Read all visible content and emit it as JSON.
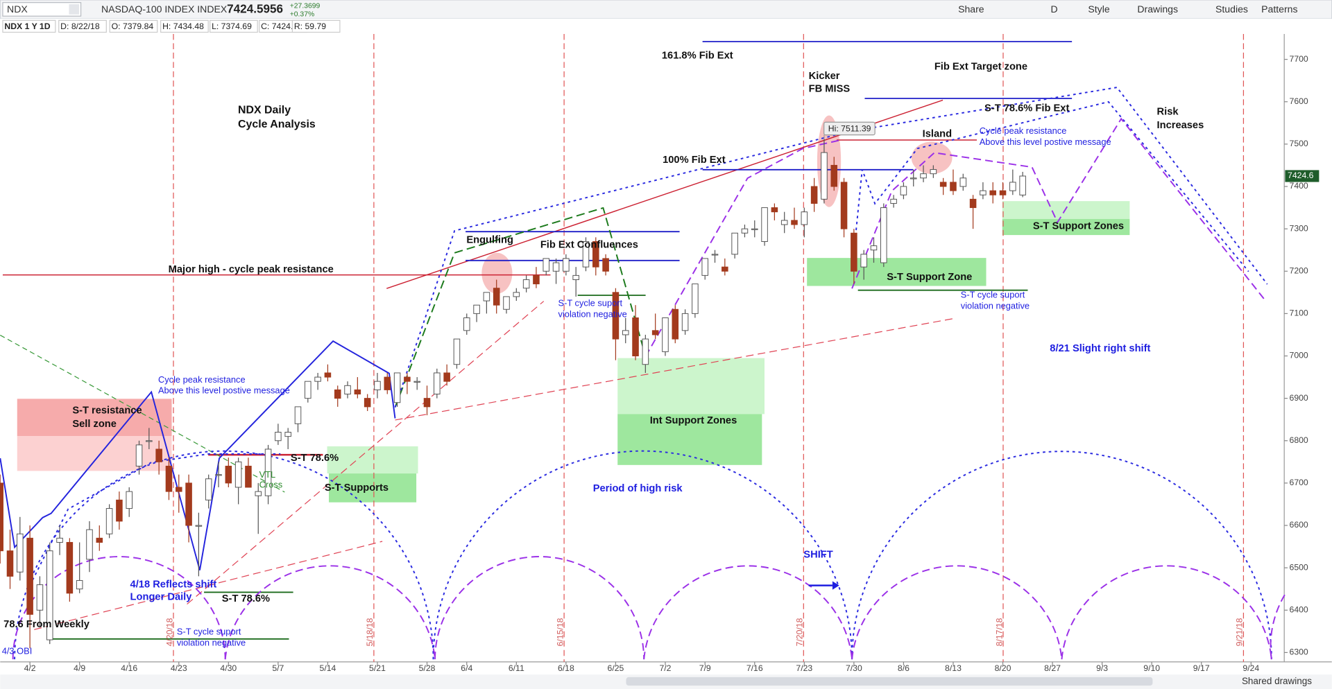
{
  "toolbar": {
    "symbol": "NDX",
    "name": "NASDAQ-100 INDEX INDEX",
    "price": "7424.5956",
    "change": "+27.3699",
    "change_pct": "+0.37%",
    "buttons": [
      "Share",
      "D",
      "Style",
      "Drawings",
      "Studies",
      "Patterns"
    ],
    "info": [
      "NDX 1 Y 1D",
      "D: 8/22/18",
      "O: 7379.84",
      "H: 7434.48",
      "L: 7374.69",
      "C: 7424.6",
      "R: 59.79"
    ],
    "footer": "Shared drawings"
  },
  "chart_data": {
    "type": "candlestick",
    "categories": [
      "3/27",
      "3/28",
      "3/29",
      "4/2",
      "4/3",
      "4/4",
      "4/5",
      "4/6",
      "4/9",
      "4/10",
      "4/11",
      "4/12",
      "4/13",
      "4/16",
      "4/17",
      "4/18",
      "4/19",
      "4/20",
      "4/23",
      "4/24",
      "4/25",
      "4/26",
      "4/27",
      "4/30",
      "5/1",
      "5/2",
      "5/3",
      "5/4",
      "5/7",
      "5/8",
      "5/9",
      "5/10",
      "5/11",
      "5/14",
      "5/15",
      "5/16",
      "5/17",
      "5/18",
      "5/21",
      "5/22",
      "5/23",
      "5/24",
      "5/25",
      "5/29",
      "5/30",
      "5/31",
      "6/1",
      "6/4",
      "6/5",
      "6/6",
      "6/7",
      "6/8",
      "6/11",
      "6/12",
      "6/13",
      "6/14",
      "6/15",
      "6/18",
      "6/19",
      "6/20",
      "6/21",
      "6/22",
      "6/25",
      "6/26",
      "6/27",
      "6/28",
      "6/29",
      "7/2",
      "7/3",
      "7/5",
      "7/6",
      "7/9",
      "7/10",
      "7/11",
      "7/12",
      "7/13",
      "7/16",
      "7/17",
      "7/18",
      "7/19",
      "7/20",
      "7/23",
      "7/24",
      "7/25",
      "7/26",
      "7/27",
      "7/30",
      "7/31",
      "8/1",
      "8/2",
      "8/3",
      "8/6",
      "8/7",
      "8/8",
      "8/9",
      "8/10",
      "8/13",
      "8/14",
      "8/15",
      "8/16",
      "8/17",
      "8/20",
      "8/21",
      "8/22"
    ],
    "open": [
      6700,
      6540,
      6490,
      6570,
      6400,
      6330,
      6560,
      6560,
      6450,
      6520,
      6570,
      6580,
      6660,
      6640,
      6740,
      6800,
      6780,
      6740,
      6690,
      6700,
      6600,
      6660,
      6720,
      6740,
      6690,
      6740,
      6670,
      6670,
      6800,
      6810,
      6840,
      6900,
      6940,
      6960,
      6920,
      6910,
      6920,
      6900,
      6920,
      6950,
      6890,
      6950,
      6940,
      6900,
      6910,
      6960,
      6980,
      7060,
      7100,
      7130,
      7160,
      7110,
      7140,
      7160,
      7190,
      7200,
      7200,
      7200,
      7180,
      7210,
      7270,
      7230,
      7150,
      7050,
      7090,
      6980,
      7060,
      7010,
      7110,
      7060,
      7100,
      7190,
      7240,
      7210,
      7240,
      7290,
      7300,
      7270,
      7350,
      7310,
      7320,
      7310,
      7400,
      7370,
      7450,
      7410,
      7290,
      7210,
      7250,
      7220,
      7360,
      7380,
      7420,
      7420,
      7430,
      7410,
      7410,
      7400,
      7370,
      7380,
      7390,
      7390,
      7390,
      7379.84
    ],
    "high": [
      6720,
      6590,
      6620,
      6600,
      6480,
      6560,
      6600,
      6570,
      6560,
      6610,
      6600,
      6650,
      6680,
      6690,
      6800,
      6830,
      6800,
      6760,
      6720,
      6720,
      6630,
      6720,
      6750,
      6760,
      6760,
      6760,
      6700,
      6790,
      6840,
      6830,
      6880,
      6940,
      6960,
      6980,
      6930,
      6940,
      6950,
      6910,
      6960,
      6960,
      6960,
      6960,
      6950,
      6930,
      6970,
      6980,
      7040,
      7100,
      7120,
      7150,
      7180,
      7140,
      7160,
      7190,
      7210,
      7230,
      7230,
      7240,
      7210,
      7280,
      7280,
      7240,
      7160,
      7090,
      7120,
      7050,
      7100,
      7090,
      7120,
      7110,
      7170,
      7230,
      7250,
      7230,
      7290,
      7310,
      7320,
      7350,
      7360,
      7340,
      7350,
      7350,
      7420,
      7511.39,
      7470,
      7420,
      7300,
      7250,
      7280,
      7360,
      7380,
      7410,
      7440,
      7450,
      7450,
      7420,
      7440,
      7430,
      7380,
      7410,
      7410,
      7410,
      7440,
      7434.48
    ],
    "low": [
      6510,
      6450,
      6470,
      6310,
      6360,
      6320,
      6530,
      6420,
      6440,
      6490,
      6540,
      6570,
      6590,
      6620,
      6720,
      6780,
      6720,
      6660,
      6630,
      6560,
      6480,
      6640,
      6690,
      6690,
      6650,
      6690,
      6580,
      6650,
      6790,
      6780,
      6820,
      6890,
      6920,
      6940,
      6880,
      6900,
      6900,
      6870,
      6900,
      6910,
      6880,
      6910,
      6920,
      6860,
      6900,
      6930,
      6970,
      7050,
      7080,
      7100,
      7100,
      7100,
      7130,
      7150,
      7160,
      7190,
      7170,
      7190,
      7140,
      7200,
      7190,
      7190,
      6990,
      7030,
      6990,
      6960,
      7040,
      7000,
      7030,
      7050,
      7090,
      7180,
      7220,
      7190,
      7230,
      7280,
      7280,
      7260,
      7320,
      7290,
      7300,
      7280,
      7340,
      7360,
      7390,
      7280,
      7170,
      7180,
      7220,
      7210,
      7350,
      7370,
      7400,
      7410,
      7420,
      7380,
      7380,
      7390,
      7300,
      7370,
      7360,
      7370,
      7380,
      7374.69
    ],
    "close": [
      6540,
      6480,
      6580,
      6390,
      6460,
      6540,
      6570,
      6440,
      6470,
      6590,
      6560,
      6640,
      6610,
      6680,
      6790,
      6800,
      6750,
      6680,
      6680,
      6600,
      6600,
      6710,
      6720,
      6700,
      6750,
      6690,
      6680,
      6780,
      6820,
      6820,
      6880,
      6940,
      6950,
      6950,
      6900,
      6930,
      6910,
      6880,
      6940,
      6920,
      6960,
      6940,
      6940,
      6880,
      6960,
      6940,
      7040,
      7090,
      7120,
      7150,
      7120,
      7140,
      7150,
      7180,
      7170,
      7230,
      7220,
      7230,
      7190,
      7270,
      7210,
      7200,
      7040,
      7060,
      7000,
      7040,
      7050,
      7090,
      7040,
      7100,
      7170,
      7230,
      7240,
      7200,
      7290,
      7300,
      7300,
      7350,
      7340,
      7320,
      7310,
      7340,
      7360,
      7480,
      7400,
      7300,
      7200,
      7240,
      7260,
      7350,
      7370,
      7400,
      7420,
      7430,
      7440,
      7400,
      7390,
      7420,
      7350,
      7390,
      7380,
      7380,
      7410,
      7424.6
    ],
    "up_color": "#ffffff",
    "down_color": "#a33a1d",
    "outline_color": "#555555",
    "xticks": [
      "4/2",
      "4/9",
      "4/16",
      "4/23",
      "4/30",
      "5/7",
      "5/14",
      "5/21",
      "5/28",
      "6/4",
      "6/11",
      "6/18",
      "6/25",
      "7/2",
      "7/9",
      "7/16",
      "7/23",
      "7/30",
      "8/6",
      "8/13",
      "8/20",
      "8/27",
      "9/3",
      "9/10",
      "9/17",
      "9/24"
    ],
    "ylim": [
      6278,
      7760
    ],
    "yticks": [
      6300,
      6400,
      6500,
      6600,
      6700,
      6800,
      6900,
      7000,
      7100,
      7200,
      7300,
      7400,
      7500,
      7600,
      7700
    ],
    "last_price": 7424.6,
    "last_price_color": "#1e5c2a",
    "hi_label": "Hi: 7511.39",
    "cycle_dates": [
      "4/20/18",
      "5/18/18",
      "6/15/18",
      "7/20/18",
      "8/17/18",
      "9/21/18"
    ],
    "annotations": [
      "NDX Daily",
      "Cycle Analysis",
      "161.8% Fib Ext",
      "Kicker",
      "FB MISS",
      "Fib Ext Target zone",
      "S-T  78.6% Fib Ext",
      "Risk",
      "Increases",
      "Island",
      "Cycle peak resistance",
      "Above this level postive message",
      "100% Fib Ext",
      "Engulfing",
      "Fib Ext Confluences",
      "Major high - cycle peak resistance",
      "S-T cycle suport",
      "violation negative",
      "S-T  Support Zone",
      "S-T Support Zones",
      "S-T cycle suport",
      "violation negative",
      "8/21 Slight right shift",
      "Cycle peak resistance",
      "Above this level postive message",
      "S-T resistance",
      "Sell zone",
      "Int Support Zones",
      "S-T 78.6%",
      "VTL",
      "Cross",
      "S-T Supports",
      "Period of high risk",
      "SHIFT",
      "4/18 Reflects shift",
      "Longer Daily",
      "S-T 78.6%",
      "78.6 From Weekly",
      "S-T cycle suport",
      "violation negative",
      "4/3 OBI"
    ]
  }
}
